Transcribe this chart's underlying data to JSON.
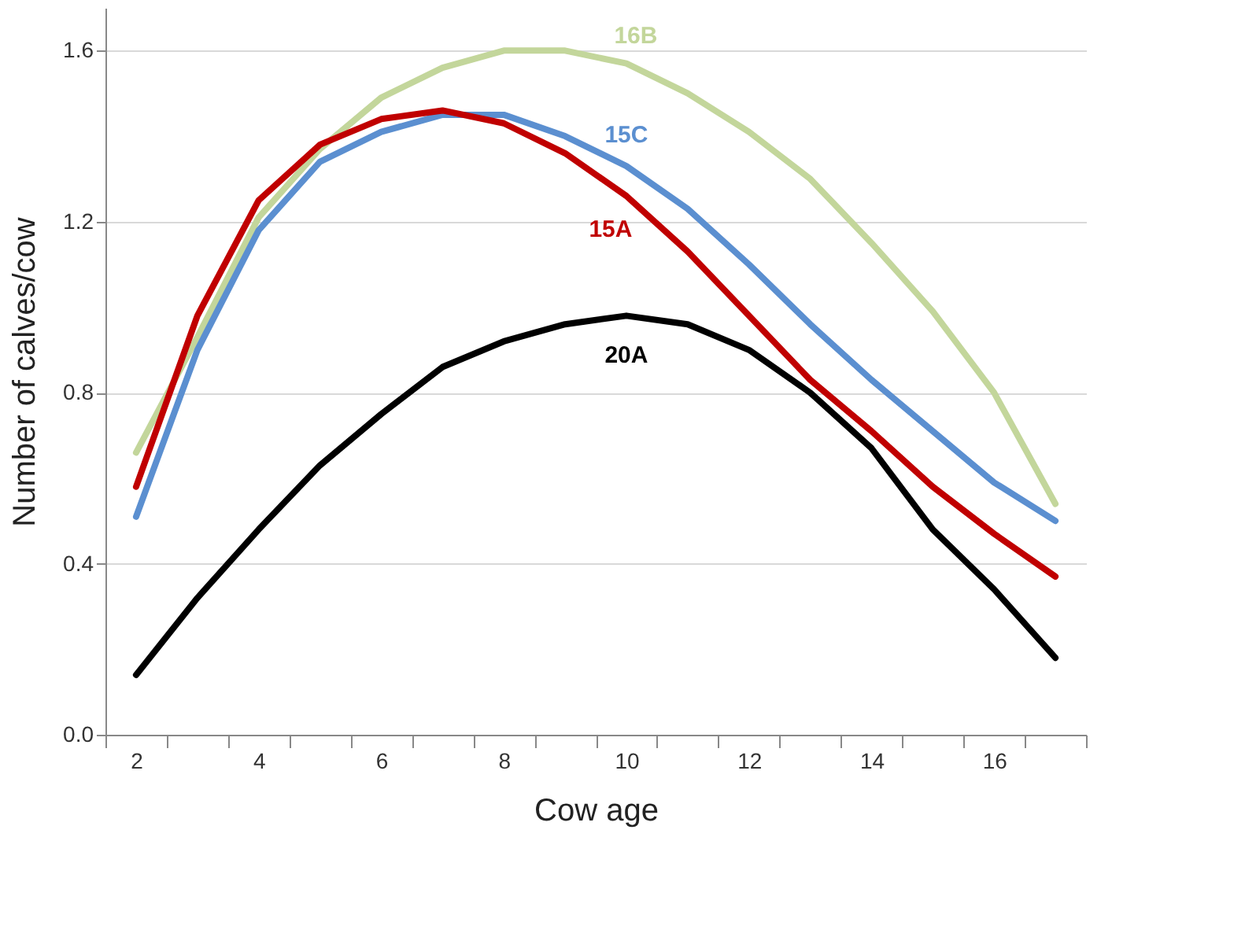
{
  "chart_data": {
    "type": "line",
    "xlabel": "Cow age",
    "ylabel": "Number of calves/cow",
    "categories": [
      "2",
      null,
      "4",
      null,
      "6",
      null,
      "8",
      null,
      "10",
      null,
      "12",
      null,
      "14",
      null,
      "16",
      null
    ],
    "ylim": [
      0,
      1.7
    ],
    "yticks": [
      {
        "value": 0,
        "label": "0.0"
      },
      {
        "value": 0.4,
        "label": "0.4"
      },
      {
        "value": 0.8,
        "label": "0.8"
      },
      {
        "value": 1.2,
        "label": "1.2"
      },
      {
        "value": 1.6,
        "label": "1.6"
      }
    ],
    "grid": "y",
    "legend": false,
    "marker": "none",
    "line_style": "solid",
    "series": [
      {
        "name": "16B",
        "color": "#c3d69b",
        "values": [
          0.66,
          0.93,
          1.21,
          1.37,
          1.49,
          1.56,
          1.6,
          1.6,
          1.57,
          1.5,
          1.41,
          1.3,
          1.15,
          0.99,
          0.8,
          0.54
        ]
      },
      {
        "name": "15C",
        "color": "#5b8fd0",
        "values": [
          0.51,
          0.9,
          1.18,
          1.34,
          1.41,
          1.45,
          1.45,
          1.4,
          1.33,
          1.23,
          1.1,
          0.96,
          0.83,
          0.71,
          0.59,
          0.5
        ]
      },
      {
        "name": "15A",
        "color": "#c00000",
        "values": [
          0.58,
          0.98,
          1.25,
          1.38,
          1.44,
          1.46,
          1.43,
          1.36,
          1.26,
          1.13,
          0.98,
          0.83,
          0.71,
          0.58,
          0.47,
          0.37
        ]
      },
      {
        "name": "20A",
        "color": "#000000",
        "values": [
          0.14,
          0.32,
          0.48,
          0.63,
          0.75,
          0.86,
          0.92,
          0.96,
          0.98,
          0.96,
          0.9,
          0.8,
          0.67,
          0.48,
          0.34,
          0.18
        ]
      }
    ]
  }
}
